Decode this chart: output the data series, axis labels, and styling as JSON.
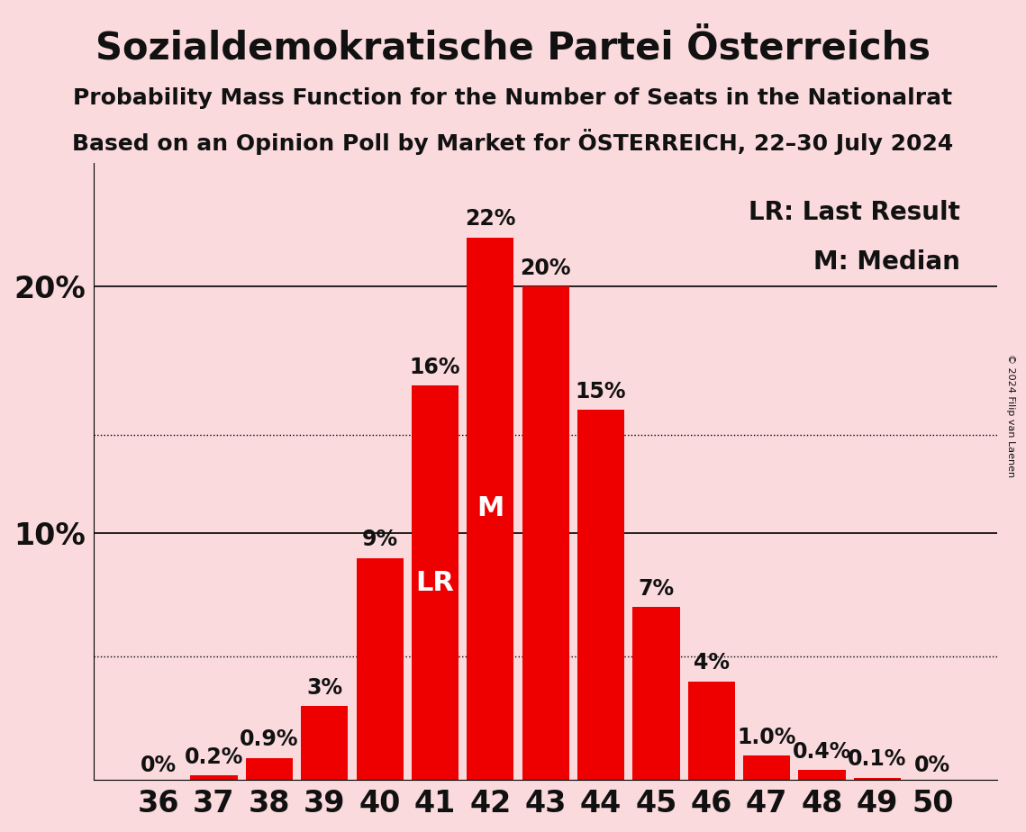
{
  "title": "Sozialdemokratische Partei Österreichs",
  "subtitle1": "Probability Mass Function for the Number of Seats in the Nationalrat",
  "subtitle2": "Based on an Opinion Poll by Market for ÖSTERREICH, 22–30 July 2024",
  "copyright": "© 2024 Filip van Laenen",
  "categories": [
    36,
    37,
    38,
    39,
    40,
    41,
    42,
    43,
    44,
    45,
    46,
    47,
    48,
    49,
    50
  ],
  "values": [
    0.0,
    0.2,
    0.9,
    3.0,
    9.0,
    16.0,
    22.0,
    20.0,
    15.0,
    7.0,
    4.0,
    1.0,
    0.4,
    0.1,
    0.0
  ],
  "bar_color": "#ee0000",
  "background_color": "#fadadd",
  "text_color": "#111111",
  "bar_labels": [
    "0%",
    "0.2%",
    "0.9%",
    "3%",
    "9%",
    "16%",
    "22%",
    "20%",
    "15%",
    "7%",
    "4%",
    "1.0%",
    "0.4%",
    "0.1%",
    "0%"
  ],
  "yticks": [
    0,
    10,
    20
  ],
  "ytick_labels": [
    "",
    "10%",
    "20%"
  ],
  "dotted_lines": [
    5.0,
    14.0
  ],
  "solid_lines": [
    10.0,
    20.0
  ],
  "last_result_seat": 41,
  "median_seat": 42,
  "legend_lr": "LR: Last Result",
  "legend_m": "M: Median",
  "title_fontsize": 30,
  "subtitle_fontsize": 18,
  "bar_label_fontsize": 17,
  "axis_label_fontsize": 24,
  "legend_fontsize": 20
}
